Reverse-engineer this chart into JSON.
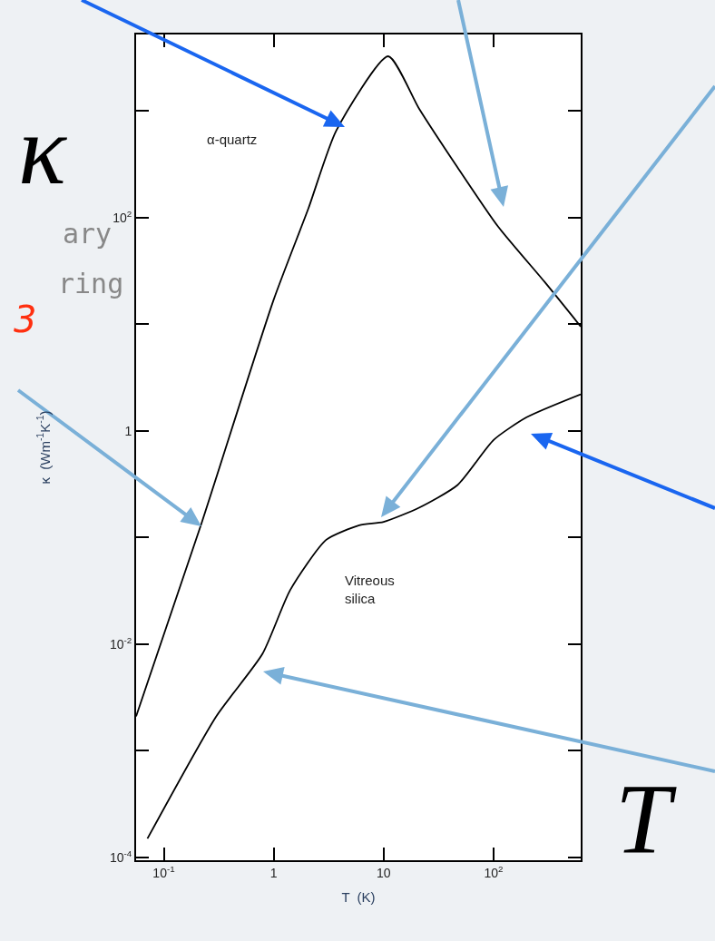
{
  "chart_data": {
    "type": "line",
    "xlabel": "T  (K)",
    "ylabel": "κ  (Wm$^{-1}$K$^{-1}$)",
    "log": "xy",
    "marker": "none",
    "line_style": "solid",
    "xlim": [
      0.056,
      620
    ],
    "ylim": [
      9.4e-05,
      5200
    ],
    "xticks": [
      {
        "value": 0.1,
        "label": "10$^{-1}$"
      },
      1,
      10,
      {
        "value": 100,
        "label": "10$^{2}$"
      }
    ],
    "yticks": [
      {
        "value": 0.0001,
        "label": "10$^{-4}$"
      },
      {
        "value": 0.001,
        "label": null
      },
      {
        "value": 0.01,
        "label": "10$^{-2}$"
      },
      {
        "value": 0.1,
        "label": null
      },
      1,
      {
        "value": 10,
        "label": null
      },
      {
        "value": 100,
        "label": "10$^{2}$"
      },
      {
        "value": 1000,
        "label": null
      }
    ],
    "series": [
      {
        "color": "#000000",
        "x": [
          0.056,
          0.22,
          1,
          2.07,
          3.7,
          11,
          21,
          47,
          110,
          290,
          620
        ],
        "values": [
          0.0021,
          0.135,
          17,
          122,
          650,
          3250,
          1050,
          295,
          82,
          25,
          9.5
        ]
      },
      {
        "color": "#000000",
        "x": [
          0.071,
          0.3,
          0.79,
          1.41,
          3,
          6,
          10,
          21,
          47,
          100,
          200,
          620
        ],
        "values": [
          0.00015,
          0.0021,
          0.0081,
          0.032,
          0.095,
          0.13,
          0.14,
          0.19,
          0.31,
          0.82,
          1.34,
          2.2
        ]
      }
    ],
    "annotations": [
      "α-quartz",
      "Vitreous\nsilica",
      "κ",
      "ary",
      "ring",
      "3",
      "T"
    ]
  }
}
